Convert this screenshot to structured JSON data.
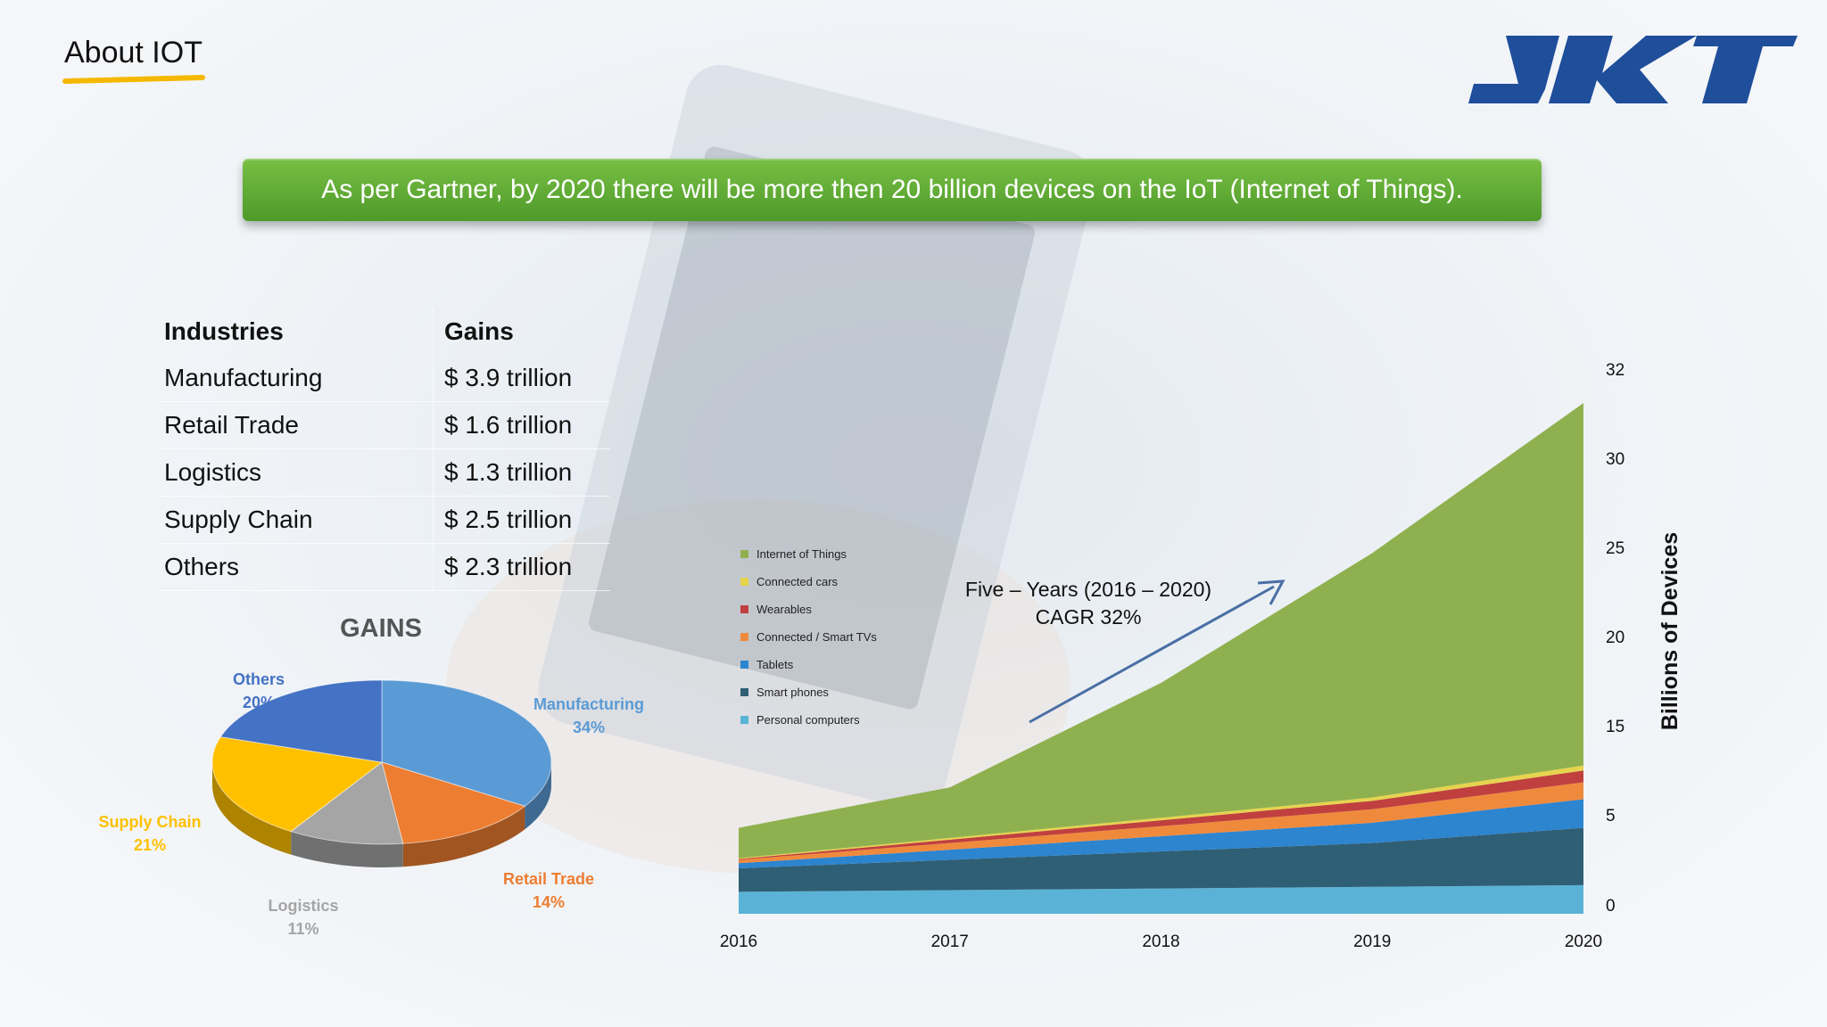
{
  "slide": {
    "title": "About IOT",
    "logo_text": "JKT",
    "banner": "As per Gartner, by 2020 there will be more then 20 billion devices on the IoT (Internet of Things)."
  },
  "table": {
    "headers": [
      "Industries",
      "Gains"
    ],
    "rows": [
      [
        "Manufacturing",
        "$ 3.9 trillion"
      ],
      [
        "Retail Trade",
        "$ 1.6 trillion"
      ],
      [
        "Logistics",
        "$ 1.3 trillion"
      ],
      [
        "Supply Chain",
        "$ 2.5 trillion"
      ],
      [
        "Others",
        "$ 2.3 trillion"
      ]
    ]
  },
  "annotation": {
    "line1": "Five – Years (2016 – 2020)",
    "line2": "CAGR 32%"
  },
  "colors": {
    "accent_green": "#5aa832",
    "underline": "#f5b800",
    "logo_blue": "#1f4e9a"
  },
  "chart_data": [
    {
      "type": "pie",
      "title": "GAINS",
      "slices": [
        {
          "label": "Manufacturing",
          "pct_label": "34%",
          "value": 34,
          "color": "#5b9bd5"
        },
        {
          "label": "Retail Trade",
          "pct_label": "14%",
          "value": 14,
          "color": "#ed7d31"
        },
        {
          "label": "Logistics",
          "pct_label": "11%",
          "value": 11,
          "color": "#a5a5a5"
        },
        {
          "label": "Supply Chain",
          "pct_label": "21%",
          "value": 21,
          "color": "#ffc000"
        },
        {
          "label": "Others",
          "pct_label": "20%",
          "value": 20,
          "color": "#4472c4"
        }
      ],
      "label_colors": [
        "#5b9bd5",
        "#ed7d31",
        "#a5a5a5",
        "#ffc000",
        "#4472c4"
      ]
    },
    {
      "type": "area",
      "stacked": true,
      "x": [
        2016,
        2017,
        2018,
        2019,
        2020
      ],
      "ylabel": "Billions of Devices",
      "y_ticks": [
        "0",
        "5",
        "15",
        "20",
        "25",
        "30",
        "32"
      ],
      "series": [
        {
          "name": "Personal computers",
          "color": "#5ab3d6",
          "values": [
            1.3,
            1.4,
            1.5,
            1.6,
            1.7
          ]
        },
        {
          "name": "Smart phones",
          "color": "#2f5f74",
          "values": [
            1.4,
            1.8,
            2.2,
            2.6,
            3.4
          ]
        },
        {
          "name": "Tablets",
          "color": "#2d84cf",
          "values": [
            0.3,
            0.6,
            0.9,
            1.2,
            1.7
          ]
        },
        {
          "name": "Connected / Smart TVs",
          "color": "#ef8a3d",
          "values": [
            0.2,
            0.4,
            0.6,
            0.8,
            1.0
          ]
        },
        {
          "name": "Wearables",
          "color": "#c0403f",
          "values": [
            0.05,
            0.2,
            0.35,
            0.5,
            0.7
          ]
        },
        {
          "name": "Connected cars",
          "color": "#e6d34e",
          "values": [
            0.05,
            0.1,
            0.15,
            0.2,
            0.3
          ]
        },
        {
          "name": "Internet of Things",
          "color": "#8fb04f",
          "values": [
            1.8,
            3.0,
            8.0,
            14.5,
            21.5
          ]
        }
      ],
      "legend_order": [
        "Internet of Things",
        "Connected cars",
        "Wearables",
        "Connected / Smart TVs",
        "Tablets",
        "Smart phones",
        "Personal computers"
      ],
      "ylim": [
        0,
        32
      ],
      "legend_position": "left"
    }
  ]
}
